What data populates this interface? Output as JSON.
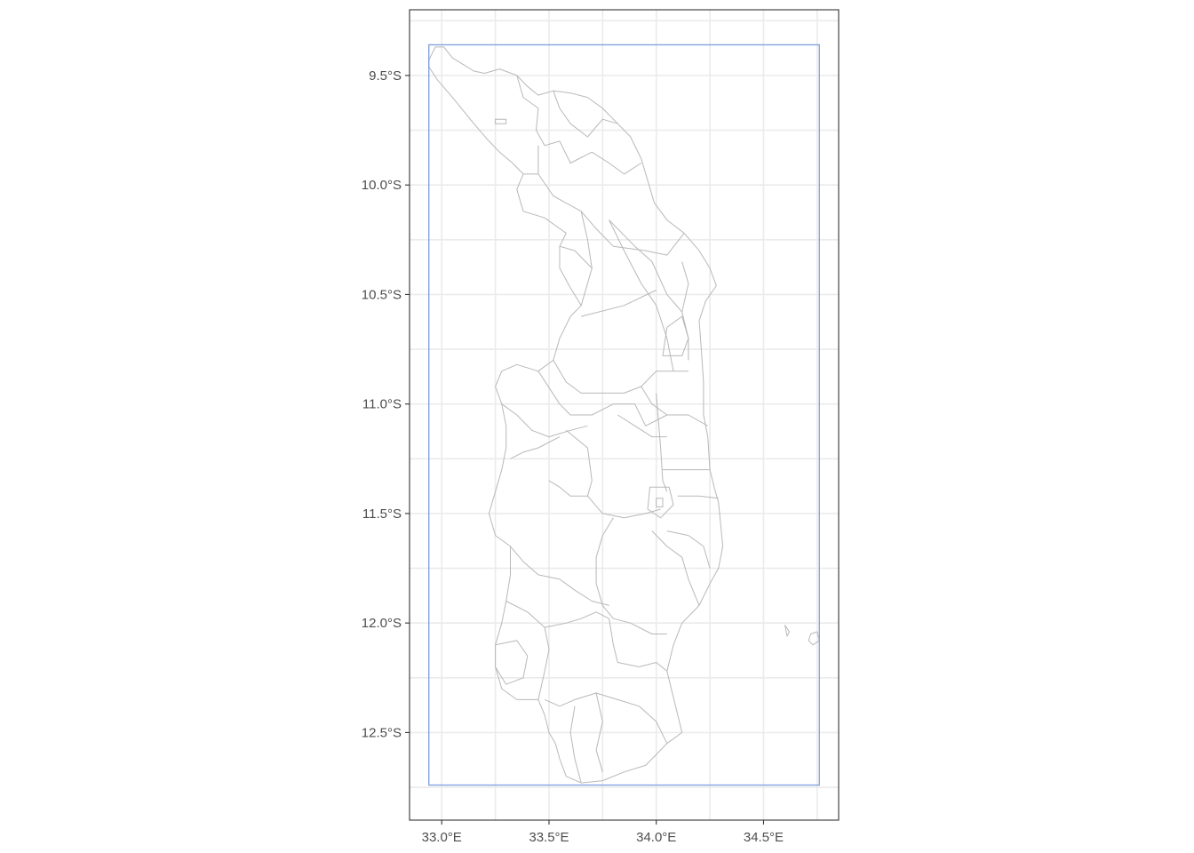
{
  "map": {
    "x_axis": {
      "range": [
        32.85,
        34.85
      ],
      "ticks": [
        {
          "value": 33.0,
          "label": "33.0°E"
        },
        {
          "value": 33.5,
          "label": "33.5°E"
        },
        {
          "value": 34.0,
          "label": "34.0°E"
        },
        {
          "value": 34.5,
          "label": "34.5°E"
        }
      ],
      "minor_ticks": [
        32.75,
        33.25,
        33.75,
        34.25,
        34.75
      ]
    },
    "y_axis": {
      "range": [
        -12.9,
        -9.2
      ],
      "ticks": [
        {
          "value": -9.5,
          "label": "9.5°S"
        },
        {
          "value": -10.0,
          "label": "10.0°S"
        },
        {
          "value": -10.5,
          "label": "10.5°S"
        },
        {
          "value": -11.0,
          "label": "11.0°S"
        },
        {
          "value": -11.5,
          "label": "11.5°S"
        },
        {
          "value": -12.0,
          "label": "12.0°S"
        },
        {
          "value": -12.5,
          "label": "12.5°S"
        }
      ],
      "minor_ticks": [
        -9.25,
        -9.75,
        -10.25,
        -10.75,
        -11.25,
        -11.75,
        -12.25,
        -12.75
      ]
    },
    "bounding_box": {
      "xmin": 32.94,
      "xmax": 34.76,
      "ymin": -12.74,
      "ymax": -9.36,
      "color": "#7b9fdc"
    },
    "boundary_color": "#b8b8b8",
    "grid": true,
    "outline": [
      [
        32.94,
        -9.43
      ],
      [
        32.97,
        -9.37
      ],
      [
        33.01,
        -9.37
      ],
      [
        33.05,
        -9.42
      ],
      [
        33.1,
        -9.45
      ],
      [
        33.15,
        -9.48
      ],
      [
        33.2,
        -9.49
      ],
      [
        33.27,
        -9.47
      ],
      [
        33.35,
        -9.5
      ],
      [
        33.4,
        -9.55
      ],
      [
        33.45,
        -9.59
      ],
      [
        33.52,
        -9.57
      ],
      [
        33.6,
        -9.58
      ],
      [
        33.68,
        -9.6
      ],
      [
        33.75,
        -9.65
      ],
      [
        33.82,
        -9.72
      ],
      [
        33.88,
        -9.78
      ],
      [
        33.93,
        -9.88
      ],
      [
        33.96,
        -9.98
      ],
      [
        33.99,
        -10.08
      ],
      [
        34.05,
        -10.16
      ],
      [
        34.13,
        -10.22
      ],
      [
        34.2,
        -10.3
      ],
      [
        34.25,
        -10.38
      ],
      [
        34.28,
        -10.46
      ],
      [
        34.23,
        -10.53
      ],
      [
        34.2,
        -10.62
      ],
      [
        34.21,
        -10.75
      ],
      [
        34.22,
        -10.9
      ],
      [
        34.22,
        -11.05
      ],
      [
        34.24,
        -11.15
      ],
      [
        34.25,
        -11.3
      ],
      [
        34.27,
        -11.38
      ],
      [
        34.29,
        -11.45
      ],
      [
        34.3,
        -11.55
      ],
      [
        34.31,
        -11.65
      ],
      [
        34.29,
        -11.75
      ],
      [
        34.25,
        -11.82
      ],
      [
        34.2,
        -11.92
      ],
      [
        34.12,
        -12.0
      ],
      [
        34.08,
        -12.1
      ],
      [
        34.05,
        -12.22
      ],
      [
        34.07,
        -12.3
      ],
      [
        34.1,
        -12.42
      ],
      [
        34.12,
        -12.5
      ],
      [
        34.05,
        -12.55
      ],
      [
        34.0,
        -12.6
      ],
      [
        33.95,
        -12.65
      ],
      [
        33.85,
        -12.68
      ],
      [
        33.75,
        -12.72
      ],
      [
        33.65,
        -12.73
      ],
      [
        33.58,
        -12.7
      ],
      [
        33.55,
        -12.62
      ],
      [
        33.53,
        -12.55
      ],
      [
        33.5,
        -12.5
      ],
      [
        33.48,
        -12.42
      ],
      [
        33.45,
        -12.35
      ],
      [
        33.35,
        -12.35
      ],
      [
        33.28,
        -12.3
      ],
      [
        33.25,
        -12.2
      ],
      [
        33.25,
        -12.1
      ],
      [
        33.28,
        -12.0
      ],
      [
        33.3,
        -11.9
      ],
      [
        33.32,
        -11.78
      ],
      [
        33.32,
        -11.65
      ],
      [
        33.25,
        -11.6
      ],
      [
        33.22,
        -11.5
      ],
      [
        33.25,
        -11.4
      ],
      [
        33.28,
        -11.3
      ],
      [
        33.3,
        -11.2
      ],
      [
        33.3,
        -11.1
      ],
      [
        33.28,
        -11.0
      ],
      [
        33.25,
        -10.92
      ],
      [
        33.28,
        -10.85
      ],
      [
        33.35,
        -10.82
      ],
      [
        33.45,
        -10.85
      ],
      [
        33.52,
        -10.8
      ],
      [
        33.55,
        -10.7
      ],
      [
        33.6,
        -10.6
      ],
      [
        33.65,
        -10.55
      ],
      [
        33.6,
        -10.47
      ],
      [
        33.55,
        -10.38
      ],
      [
        33.55,
        -10.28
      ],
      [
        33.58,
        -10.22
      ],
      [
        33.48,
        -10.15
      ],
      [
        33.38,
        -10.12
      ],
      [
        33.35,
        -10.02
      ],
      [
        33.38,
        -9.95
      ],
      [
        33.33,
        -9.9
      ],
      [
        33.27,
        -9.85
      ],
      [
        33.22,
        -9.8
      ],
      [
        33.15,
        -9.72
      ],
      [
        33.1,
        -9.66
      ],
      [
        33.05,
        -9.6
      ],
      [
        32.98,
        -9.52
      ],
      [
        32.94,
        -9.46
      ],
      [
        32.94,
        -9.43
      ]
    ],
    "interior_lines": [
      [
        [
          33.35,
          -9.5
        ],
        [
          33.38,
          -9.6
        ],
        [
          33.45,
          -9.65
        ],
        [
          33.44,
          -9.75
        ],
        [
          33.48,
          -9.82
        ],
        [
          33.55,
          -9.8
        ],
        [
          33.6,
          -9.9
        ],
        [
          33.7,
          -9.85
        ],
        [
          33.78,
          -9.9
        ],
        [
          33.85,
          -9.95
        ],
        [
          33.93,
          -9.9
        ]
      ],
      [
        [
          33.52,
          -9.57
        ],
        [
          33.55,
          -9.65
        ],
        [
          33.6,
          -9.72
        ],
        [
          33.68,
          -9.78
        ],
        [
          33.75,
          -9.7
        ],
        [
          33.82,
          -9.72
        ]
      ],
      [
        [
          33.45,
          -9.82
        ],
        [
          33.45,
          -9.95
        ],
        [
          33.52,
          -10.05
        ],
        [
          33.65,
          -10.12
        ],
        [
          33.72,
          -10.2
        ],
        [
          33.8,
          -10.28
        ],
        [
          33.95,
          -10.3
        ],
        [
          34.05,
          -10.32
        ],
        [
          34.13,
          -10.22
        ]
      ],
      [
        [
          33.38,
          -9.95
        ],
        [
          33.45,
          -9.95
        ]
      ],
      [
        [
          33.65,
          -10.12
        ],
        [
          33.68,
          -10.25
        ],
        [
          33.7,
          -10.38
        ],
        [
          33.65,
          -10.55
        ]
      ],
      [
        [
          33.55,
          -10.28
        ],
        [
          33.62,
          -10.3
        ],
        [
          33.7,
          -10.38
        ]
      ],
      [
        [
          33.78,
          -10.16
        ],
        [
          33.85,
          -10.3
        ],
        [
          33.93,
          -10.45
        ],
        [
          34.0,
          -10.55
        ],
        [
          34.05,
          -10.7
        ],
        [
          34.08,
          -10.85
        ]
      ],
      [
        [
          33.78,
          -10.16
        ],
        [
          33.9,
          -10.28
        ],
        [
          33.98,
          -10.35
        ],
        [
          34.05,
          -10.5
        ],
        [
          34.12,
          -10.58
        ]
      ],
      [
        [
          33.65,
          -10.6
        ],
        [
          33.85,
          -10.55
        ],
        [
          34.0,
          -10.48
        ]
      ],
      [
        [
          34.12,
          -10.35
        ],
        [
          34.15,
          -10.45
        ],
        [
          34.12,
          -10.58
        ],
        [
          34.15,
          -10.7
        ],
        [
          34.15,
          -10.8
        ]
      ],
      [
        [
          34.05,
          -10.65
        ],
        [
          34.12,
          -10.6
        ],
        [
          34.15,
          -10.7
        ],
        [
          34.12,
          -10.78
        ],
        [
          34.03,
          -10.78
        ],
        [
          34.05,
          -10.65
        ]
      ],
      [
        [
          33.52,
          -10.8
        ],
        [
          33.58,
          -10.9
        ],
        [
          33.65,
          -10.95
        ],
        [
          33.75,
          -10.95
        ],
        [
          33.85,
          -10.95
        ],
        [
          33.93,
          -10.92
        ],
        [
          34.0,
          -10.85
        ],
        [
          34.08,
          -10.85
        ],
        [
          34.15,
          -10.85
        ]
      ],
      [
        [
          33.45,
          -10.85
        ],
        [
          33.55,
          -11.0
        ],
        [
          33.6,
          -11.05
        ],
        [
          33.7,
          -11.05
        ],
        [
          33.8,
          -11.0
        ],
        [
          33.9,
          -11.0
        ],
        [
          33.95,
          -11.1
        ],
        [
          34.05,
          -11.05
        ],
        [
          34.15,
          -11.05
        ],
        [
          34.24,
          -11.1
        ]
      ],
      [
        [
          33.28,
          -11.0
        ],
        [
          33.35,
          -11.05
        ],
        [
          33.42,
          -11.12
        ],
        [
          33.5,
          -11.15
        ],
        [
          33.6,
          -11.12
        ],
        [
          33.68,
          -11.1
        ]
      ],
      [
        [
          33.32,
          -11.25
        ],
        [
          33.38,
          -11.22
        ],
        [
          33.45,
          -11.2
        ],
        [
          33.55,
          -11.15
        ]
      ],
      [
        [
          33.58,
          -11.12
        ],
        [
          33.68,
          -11.2
        ],
        [
          33.7,
          -11.35
        ],
        [
          33.68,
          -11.42
        ],
        [
          33.6,
          -11.42
        ],
        [
          33.55,
          -11.38
        ],
        [
          33.5,
          -11.35
        ]
      ],
      [
        [
          33.82,
          -11.05
        ],
        [
          33.9,
          -11.1
        ],
        [
          33.98,
          -11.15
        ],
        [
          34.05,
          -11.15
        ]
      ],
      [
        [
          33.93,
          -10.92
        ],
        [
          33.98,
          -11.0
        ],
        [
          34.05,
          -11.05
        ]
      ],
      [
        [
          34.0,
          -10.95
        ],
        [
          34.02,
          -11.2
        ],
        [
          34.03,
          -11.35
        ],
        [
          34.05,
          -11.4
        ]
      ],
      [
        [
          34.03,
          -11.3
        ],
        [
          34.15,
          -11.3
        ],
        [
          34.25,
          -11.3
        ]
      ],
      [
        [
          34.1,
          -11.42
        ],
        [
          34.2,
          -11.42
        ],
        [
          34.29,
          -11.43
        ]
      ],
      [
        [
          33.68,
          -11.42
        ],
        [
          33.75,
          -11.5
        ],
        [
          33.85,
          -11.52
        ],
        [
          33.95,
          -11.5
        ],
        [
          34.02,
          -11.48
        ]
      ],
      [
        [
          33.32,
          -11.65
        ],
        [
          33.38,
          -11.72
        ],
        [
          33.45,
          -11.78
        ],
        [
          33.55,
          -11.8
        ],
        [
          33.62,
          -11.85
        ],
        [
          33.7,
          -11.9
        ],
        [
          33.78,
          -11.92
        ]
      ],
      [
        [
          33.8,
          -11.52
        ],
        [
          33.75,
          -11.6
        ],
        [
          33.72,
          -11.7
        ],
        [
          33.72,
          -11.82
        ],
        [
          33.75,
          -11.92
        ],
        [
          33.8,
          -11.98
        ],
        [
          33.88,
          -12.0
        ],
        [
          33.98,
          -12.05
        ],
        [
          34.05,
          -12.05
        ]
      ],
      [
        [
          33.98,
          -11.58
        ],
        [
          34.05,
          -11.65
        ],
        [
          34.12,
          -11.7
        ],
        [
          34.15,
          -11.8
        ],
        [
          34.2,
          -11.92
        ]
      ],
      [
        [
          34.05,
          -11.58
        ],
        [
          34.15,
          -11.6
        ],
        [
          34.22,
          -11.65
        ],
        [
          34.25,
          -11.75
        ]
      ],
      [
        [
          33.3,
          -11.9
        ],
        [
          33.4,
          -11.95
        ],
        [
          33.48,
          -12.02
        ],
        [
          33.5,
          -12.12
        ],
        [
          33.48,
          -12.22
        ],
        [
          33.45,
          -12.35
        ]
      ],
      [
        [
          33.48,
          -12.02
        ],
        [
          33.58,
          -12.0
        ],
        [
          33.65,
          -11.98
        ],
        [
          33.72,
          -11.95
        ],
        [
          33.78,
          -11.98
        ]
      ],
      [
        [
          33.78,
          -11.98
        ],
        [
          33.8,
          -12.1
        ],
        [
          33.82,
          -12.18
        ],
        [
          33.92,
          -12.2
        ],
        [
          34.0,
          -12.18
        ],
        [
          34.05,
          -12.22
        ]
      ],
      [
        [
          33.48,
          -12.35
        ],
        [
          33.55,
          -12.38
        ],
        [
          33.62,
          -12.35
        ],
        [
          33.72,
          -12.32
        ],
        [
          33.82,
          -12.35
        ],
        [
          33.92,
          -12.38
        ],
        [
          34.0,
          -12.45
        ],
        [
          34.05,
          -12.55
        ]
      ],
      [
        [
          33.62,
          -12.38
        ],
        [
          33.6,
          -12.5
        ],
        [
          33.62,
          -12.62
        ],
        [
          33.65,
          -12.73
        ]
      ],
      [
        [
          33.72,
          -12.32
        ],
        [
          33.75,
          -12.45
        ],
        [
          33.72,
          -12.58
        ],
        [
          33.75,
          -12.68
        ]
      ],
      [
        [
          33.25,
          -12.1
        ],
        [
          33.35,
          -12.08
        ],
        [
          33.4,
          -12.15
        ],
        [
          33.38,
          -12.25
        ],
        [
          33.3,
          -12.28
        ],
        [
          33.25,
          -12.2
        ]
      ]
    ],
    "islands": [
      [
        [
          34.6,
          -12.01
        ],
        [
          34.62,
          -12.04
        ],
        [
          34.61,
          -12.06
        ],
        [
          34.6,
          -12.01
        ]
      ],
      [
        [
          34.72,
          -12.05
        ],
        [
          34.75,
          -12.04
        ],
        [
          34.76,
          -12.08
        ],
        [
          34.73,
          -12.1
        ],
        [
          34.71,
          -12.08
        ],
        [
          34.72,
          -12.05
        ]
      ]
    ],
    "small_parcel": [
      [
        33.25,
        -9.7
      ],
      [
        33.3,
        -9.7
      ],
      [
        33.3,
        -9.72
      ],
      [
        33.25,
        -9.72
      ],
      [
        33.25,
        -9.7
      ]
    ],
    "urban_cluster": [
      [
        [
          33.97,
          -11.38
        ],
        [
          34.06,
          -11.38
        ],
        [
          34.08,
          -11.46
        ],
        [
          34.02,
          -11.52
        ],
        [
          33.96,
          -11.48
        ],
        [
          33.97,
          -11.38
        ]
      ],
      [
        [
          34.0,
          -11.43
        ],
        [
          34.03,
          -11.43
        ],
        [
          34.03,
          -11.47
        ],
        [
          34.0,
          -11.47
        ],
        [
          34.0,
          -11.43
        ]
      ]
    ]
  }
}
